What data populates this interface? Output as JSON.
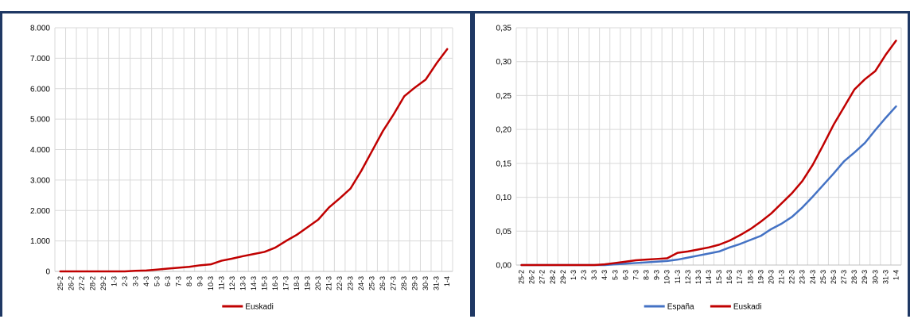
{
  "chart_data": [
    {
      "type": "line",
      "ylim": [
        0,
        8000
      ],
      "yticks": [
        "0",
        "1.000",
        "2.000",
        "3.000",
        "4.000",
        "5.000",
        "6.000",
        "7.000",
        "8.000"
      ],
      "ytick_values": [
        0,
        1000,
        2000,
        3000,
        4000,
        5000,
        6000,
        7000,
        8000
      ],
      "categories": [
        "25-2",
        "26-2",
        "27-2",
        "28-2",
        "29-2",
        "1-3",
        "2-3",
        "3-3",
        "4-3",
        "5-3",
        "6-3",
        "7-3",
        "8-3",
        "9-3",
        "10-3",
        "11-3",
        "12-3",
        "13-3",
        "14-3",
        "15-3",
        "16-3",
        "17-3",
        "18-3",
        "19-3",
        "20-3",
        "21-3",
        "22-3",
        "23-3",
        "24-3",
        "25-3",
        "26-3",
        "27-3",
        "28-3",
        "29-3",
        "30-3",
        "31-3",
        "1-4"
      ],
      "grid": true,
      "legend": "bottom",
      "series": [
        {
          "name": "Euskadi",
          "color": "#c00000",
          "values": [
            0,
            0,
            0,
            0,
            0,
            0,
            0,
            20,
            30,
            60,
            90,
            120,
            150,
            200,
            230,
            350,
            420,
            500,
            570,
            640,
            780,
            1000,
            1200,
            1450,
            1700,
            2100,
            2400,
            2720,
            3300,
            3950,
            4600,
            5150,
            5750,
            6040,
            6300,
            6830,
            7300
          ]
        }
      ]
    },
    {
      "type": "line",
      "ylim": [
        0,
        0.35
      ],
      "yticks": [
        "0,00",
        "0,05",
        "0,10",
        "0,15",
        "0,20",
        "0,25",
        "0,30",
        "0,35"
      ],
      "ytick_values": [
        0,
        0.05,
        0.1,
        0.15,
        0.2,
        0.25,
        0.3,
        0.35
      ],
      "categories": [
        "25-2",
        "26-2",
        "27-2",
        "28-2",
        "29-2",
        "1-3",
        "2-3",
        "3-3",
        "4-3",
        "5-3",
        "6-3",
        "7-3",
        "8-3",
        "9-3",
        "10-3",
        "11-3",
        "12-3",
        "13-3",
        "14-3",
        "15-3",
        "16-3",
        "17-3",
        "18-3",
        "19-3",
        "20-3",
        "21-3",
        "22-3",
        "23-3",
        "24-3",
        "25-3",
        "26-3",
        "27-3",
        "28-3",
        "29-3",
        "30-3",
        "31-3",
        "1-4"
      ],
      "grid": true,
      "legend": "bottom",
      "series": [
        {
          "name": "España",
          "color": "#4472c4",
          "values": [
            0,
            0,
            0,
            0,
            0,
            0,
            0,
            0,
            0,
            0.001,
            0.002,
            0.003,
            0.004,
            0.005,
            0.006,
            0.008,
            0.011,
            0.014,
            0.017,
            0.02,
            0.026,
            0.031,
            0.037,
            0.043,
            0.053,
            0.061,
            0.071,
            0.085,
            0.101,
            0.118,
            0.135,
            0.153,
            0.166,
            0.18,
            0.199,
            0.217,
            0.234
          ]
        },
        {
          "name": "Euskadi",
          "color": "#c00000",
          "values": [
            0,
            0,
            0,
            0,
            0,
            0,
            0,
            0,
            0.001,
            0.003,
            0.005,
            0.007,
            0.008,
            0.009,
            0.01,
            0.018,
            0.02,
            0.023,
            0.026,
            0.03,
            0.036,
            0.044,
            0.053,
            0.064,
            0.076,
            0.091,
            0.106,
            0.124,
            0.148,
            0.177,
            0.207,
            0.233,
            0.259,
            0.274,
            0.286,
            0.31,
            0.331
          ]
        }
      ]
    }
  ]
}
